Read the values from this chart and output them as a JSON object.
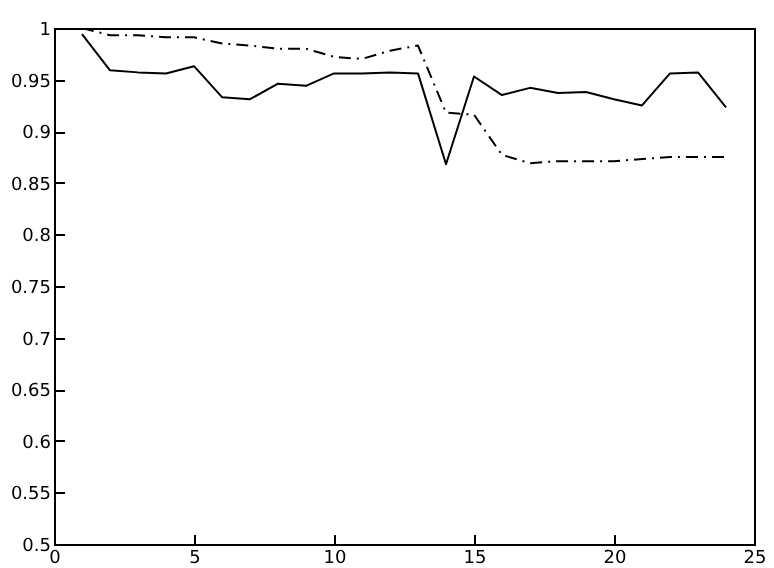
{
  "chart_data": {
    "type": "line",
    "x": [
      1,
      2,
      3,
      4,
      5,
      6,
      7,
      8,
      9,
      10,
      11,
      12,
      13,
      14,
      15,
      16,
      17,
      18,
      19,
      20,
      21,
      22,
      23,
      24
    ],
    "series": [
      {
        "color": "#000000",
        "line_style": "solid",
        "values": [
          0.994,
          0.959,
          0.957,
          0.956,
          0.963,
          0.933,
          0.931,
          0.946,
          0.944,
          0.956,
          0.956,
          0.957,
          0.956,
          0.868,
          0.953,
          0.935,
          0.942,
          0.937,
          0.938,
          0.931,
          0.925,
          0.956,
          0.957,
          0.923
        ]
      },
      {
        "color": "#000000",
        "line_style": "dashed",
        "values": [
          1.0,
          0.993,
          0.993,
          0.991,
          0.991,
          0.985,
          0.983,
          0.98,
          0.98,
          0.972,
          0.97,
          0.978,
          0.983,
          0.918,
          0.916,
          0.877,
          0.869,
          0.871,
          0.871,
          0.871,
          0.873,
          0.875,
          0.875,
          0.875
        ]
      }
    ],
    "xlim": [
      0,
      25
    ],
    "xticks": [
      0,
      5,
      10,
      15,
      20,
      25
    ],
    "ylim": [
      0.5,
      1
    ],
    "yticks": [
      0.5,
      0.55,
      0.6,
      0.65,
      0.7,
      0.75,
      0.8,
      0.85,
      0.9,
      0.95,
      1
    ],
    "grid": false,
    "legend": false,
    "marker": "none"
  }
}
